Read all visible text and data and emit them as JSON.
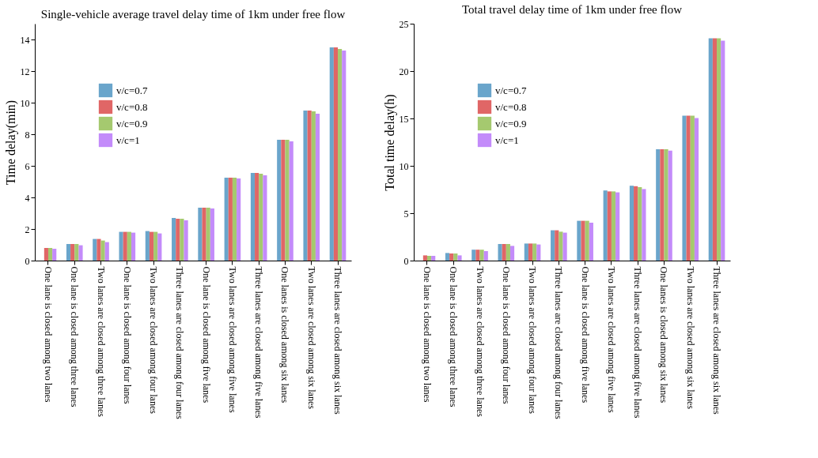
{
  "chart_data": [
    {
      "type": "bar",
      "title": "Single-vehicle average travel delay time of 1km under free flow",
      "ylabel": "Time delay(min)",
      "categories": [
        "One lane is closed among two lanes",
        "One lane is closed among three lanes",
        "Two lanes are closed among three lanes",
        "One lane is closed among four lanes",
        "Two lanes are closed among four lanes",
        "Three lanes are closed among four lanes",
        "One lane is closed among five lanes",
        "Two lanes are closed among five lanes",
        "Three lanes are closed among five lanes",
        "One lanes is closed among six lanes",
        "Two lanes are closed among six lanes",
        "Three lanes are closed among six lanes"
      ],
      "series": [
        {
          "name": "v/c=0.7",
          "color": "#6aa5cb",
          "values": [
            null,
            1.05,
            1.37,
            1.82,
            1.87,
            2.7,
            3.35,
            5.25,
            5.55,
            7.65,
            9.5,
            13.5
          ]
        },
        {
          "name": "v/c=0.8",
          "color": "#e06666",
          "values": [
            0.8,
            1.05,
            1.37,
            1.82,
            1.82,
            2.65,
            3.35,
            5.25,
            5.55,
            7.65,
            9.5,
            13.5
          ]
        },
        {
          "name": "v/c=0.9",
          "color": "#a5c96f",
          "values": [
            0.8,
            1.05,
            1.27,
            1.82,
            1.82,
            2.65,
            3.35,
            5.25,
            5.5,
            7.65,
            9.45,
            13.4
          ]
        },
        {
          "name": "v/c=1",
          "color": "#c38bfa",
          "values": [
            0.75,
            0.97,
            1.17,
            1.77,
            1.72,
            2.55,
            3.3,
            5.2,
            5.4,
            7.55,
            9.3,
            13.3
          ]
        }
      ],
      "ylim": [
        0,
        15
      ],
      "yticks": [
        0,
        2,
        4,
        6,
        8,
        10,
        12,
        14
      ],
      "legend": "top left",
      "grid": false
    },
    {
      "type": "bar",
      "title": "Total travel delay time of 1km under free flow",
      "ylabel": "Total time delay(h)",
      "categories": [
        "One lane is closed among two lanes",
        "One lane is closed among three lanes",
        "Two lanes are closed among three lanes",
        "One lane is closed among four lanes",
        "Two lanes are closed among four lanes",
        "Three lanes are closed among four lanes",
        "One lane is closed among five lanes",
        "Two lanes are closed among five lanes",
        "Three lanes are closed among five lanes",
        "One lanes is closed among six lanes",
        "Two lanes are closed among six lanes",
        "Three lanes are closed among six lanes"
      ],
      "series": [
        {
          "name": "v/c=0.7",
          "color": "#6aa5cb",
          "values": [
            null,
            0.8,
            1.15,
            1.75,
            1.8,
            3.2,
            4.2,
            7.4,
            7.9,
            11.75,
            15.3,
            23.45
          ]
        },
        {
          "name": "v/c=0.8",
          "color": "#e06666",
          "values": [
            0.55,
            0.75,
            1.15,
            1.75,
            1.8,
            3.2,
            4.2,
            7.3,
            7.85,
            11.75,
            15.3,
            23.45
          ]
        },
        {
          "name": "v/c=0.9",
          "color": "#a5c96f",
          "values": [
            0.5,
            0.75,
            1.15,
            1.75,
            1.8,
            3.05,
            4.2,
            7.3,
            7.75,
            11.75,
            15.3,
            23.45
          ]
        },
        {
          "name": "v/c=1",
          "color": "#c38bfa",
          "values": [
            0.5,
            0.55,
            1.0,
            1.55,
            1.7,
            2.95,
            4.0,
            7.2,
            7.55,
            11.6,
            15.05,
            23.2
          ]
        }
      ],
      "ylim": [
        0,
        25
      ],
      "yticks": [
        0,
        5,
        10,
        15,
        20,
        25
      ],
      "legend": "top left",
      "grid": false
    }
  ]
}
